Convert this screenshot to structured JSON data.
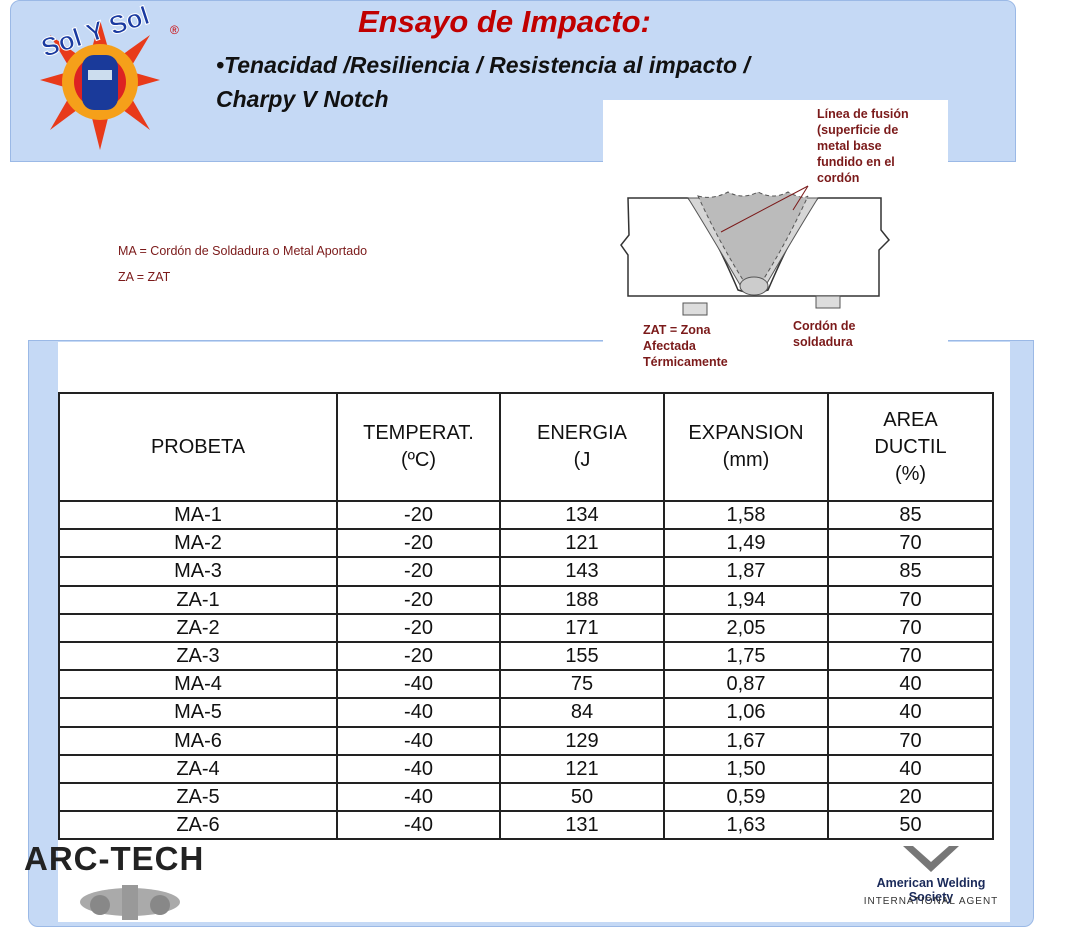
{
  "header": {
    "title": "Ensayo de Impacto:",
    "bullet_lines": [
      "•Tenacidad /Resiliencia / Resistencia al impacto /",
      "Charpy V Notch"
    ]
  },
  "logos": {
    "solysol": "Sol Y Sol",
    "registered": "®",
    "arctech": "ARC-TECH",
    "aws": "American Welding Society",
    "aws_sub": "INTERNATIONAL AGENT"
  },
  "notes": [
    "MA = Cordón de Soldadura o Metal Aportado",
    "ZA = ZAT"
  ],
  "diagram": {
    "fusion_line": [
      "Línea de fusión",
      "(superficie de",
      "metal base",
      "fundido en el",
      "cordón"
    ],
    "zat": [
      "ZAT = Zona",
      "Afectada",
      "Térmicamente"
    ],
    "weld": [
      "Cordón de",
      "soldadura"
    ]
  },
  "table": {
    "header": [
      [
        "PROBETA"
      ],
      [
        "TEMPERAT.",
        "(ºC)"
      ],
      [
        "ENERGIA",
        "(J"
      ],
      [
        "EXPANSION",
        "(mm)"
      ],
      [
        "AREA",
        "DUCTIL",
        "(%)"
      ]
    ],
    "rows": [
      [
        "MA-1",
        "-20",
        "134",
        "1,58",
        "85"
      ],
      [
        "MA-2",
        "-20",
        "121",
        "1,49",
        "70"
      ],
      [
        "MA-3",
        "-20",
        "143",
        "1,87",
        "85"
      ],
      [
        "ZA-1",
        "-20",
        "188",
        "1,94",
        "70"
      ],
      [
        "ZA-2",
        "-20",
        "171",
        "2,05",
        "70"
      ],
      [
        "ZA-3",
        "-20",
        "155",
        "1,75",
        "70"
      ],
      [
        "MA-4",
        "-40",
        "75",
        "0,87",
        "40"
      ],
      [
        "MA-5",
        "-40",
        "84",
        "1,06",
        "40"
      ],
      [
        "MA-6",
        "-40",
        "129",
        "1,67",
        "70"
      ],
      [
        "ZA-4",
        "-40",
        "121",
        "1,50",
        "40"
      ],
      [
        "ZA-5",
        "-40",
        "50",
        "0,59",
        "20"
      ],
      [
        "ZA-6",
        "-40",
        "131",
        "1,63",
        "50"
      ]
    ]
  }
}
